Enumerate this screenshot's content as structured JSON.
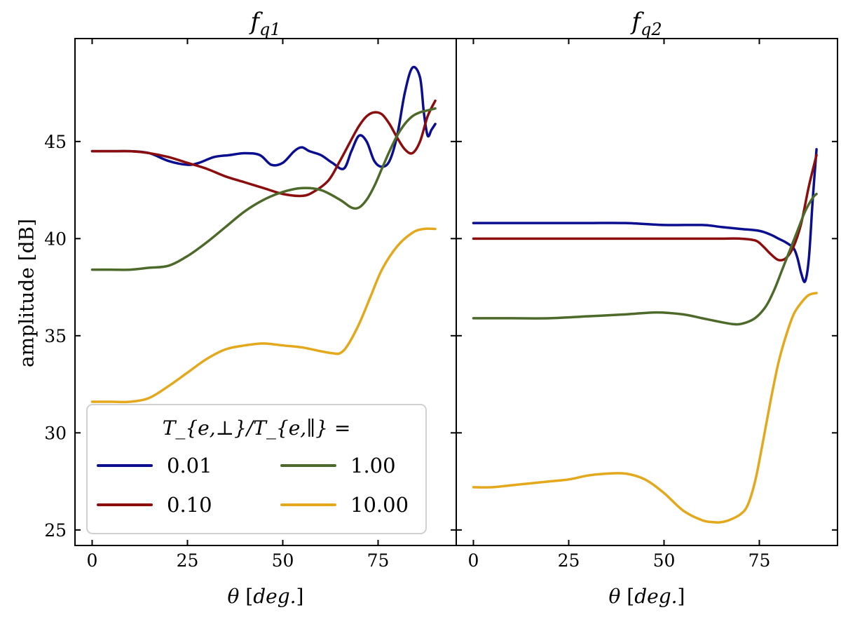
{
  "chart_data": {
    "type": "line",
    "ylabel": "amplitude [dB]",
    "ylim": [
      24.2,
      50.3
    ],
    "yticks": [
      25,
      30,
      35,
      40,
      45
    ],
    "legend": {
      "title": "T_{e,⊥}/T_{e,∥} =",
      "placement": "lower-left",
      "entries": [
        {
          "label": "0.01",
          "color": "#0b0f8f"
        },
        {
          "label": "0.10",
          "color": "#8c0d0d"
        },
        {
          "label": "1.00",
          "color": "#4d6a2a"
        },
        {
          "label": "10.00",
          "color": "#e3a81c"
        }
      ]
    },
    "panels": [
      {
        "title": "fq1",
        "title_main": "f",
        "title_sub": "q1",
        "xlabel": "θ [deg.]",
        "xlim": [
          -4.5,
          95.5
        ],
        "xticks": [
          0,
          25,
          50,
          75
        ],
        "series": [
          {
            "name": "0.01",
            "color": "#0b0f8f",
            "x": [
              0,
              5,
              10,
              15,
              20,
              25,
              28,
              32,
              36,
              40,
              44,
              47,
              50,
              53,
              55,
              57,
              60,
              63,
              66,
              68,
              70,
              72,
              74,
              76,
              78,
              80,
              82,
              84,
              86,
              87,
              88,
              89,
              90
            ],
            "y": [
              44.5,
              44.5,
              44.5,
              44.4,
              44.0,
              43.8,
              43.9,
              44.2,
              44.3,
              44.4,
              44.3,
              43.8,
              43.9,
              44.5,
              44.7,
              44.5,
              44.3,
              43.9,
              43.6,
              44.5,
              45.3,
              45.0,
              44.0,
              43.7,
              44.0,
              45.3,
              47.5,
              48.8,
              48.3,
              46.5,
              45.3,
              45.6,
              45.9
            ]
          },
          {
            "name": "0.10",
            "color": "#8c0d0d",
            "x": [
              0,
              5,
              10,
              15,
              20,
              25,
              30,
              35,
              40,
              45,
              50,
              55,
              58,
              62,
              65,
              68,
              70,
              72,
              74,
              76,
              78,
              80,
              82,
              84,
              86,
              88,
              90
            ],
            "y": [
              44.5,
              44.5,
              44.5,
              44.4,
              44.2,
              43.9,
              43.6,
              43.2,
              42.9,
              42.6,
              42.3,
              42.2,
              42.4,
              43.0,
              44.0,
              45.1,
              45.8,
              46.3,
              46.5,
              46.4,
              45.9,
              45.2,
              44.6,
              44.4,
              45.0,
              46.3,
              47.1
            ]
          },
          {
            "name": "1.00",
            "color": "#4d6a2a",
            "x": [
              0,
              5,
              10,
              15,
              20,
              25,
              30,
              35,
              40,
              45,
              50,
              55,
              60,
              65,
              68,
              70,
              72,
              74,
              76,
              78,
              80,
              82,
              84,
              86,
              88,
              90
            ],
            "y": [
              38.4,
              38.4,
              38.4,
              38.5,
              38.6,
              39.1,
              39.8,
              40.6,
              41.4,
              42.0,
              42.4,
              42.6,
              42.5,
              42.0,
              41.6,
              41.6,
              42.0,
              42.7,
              43.6,
              44.5,
              45.3,
              45.9,
              46.3,
              46.5,
              46.6,
              46.7
            ]
          },
          {
            "name": "10.00",
            "color": "#e3a81c",
            "x": [
              0,
              5,
              10,
              15,
              20,
              25,
              30,
              35,
              40,
              45,
              50,
              55,
              60,
              63,
              65,
              67,
              70,
              73,
              76,
              80,
              84,
              87,
              90
            ],
            "y": [
              31.6,
              31.6,
              31.6,
              31.8,
              32.4,
              33.1,
              33.8,
              34.3,
              34.5,
              34.6,
              34.5,
              34.4,
              34.2,
              34.1,
              34.1,
              34.5,
              35.6,
              37.0,
              38.4,
              39.6,
              40.3,
              40.5,
              40.5
            ]
          }
        ]
      },
      {
        "title": "fq2",
        "title_main": "f",
        "title_sub": "q2",
        "xlabel": "θ [deg.]",
        "xlim": [
          -4.5,
          95.5
        ],
        "xticks": [
          0,
          25,
          50,
          75
        ],
        "series": [
          {
            "name": "0.01",
            "color": "#0b0f8f",
            "x": [
              0,
              10,
              20,
              30,
              40,
              50,
              60,
              65,
              70,
              75,
              78,
              80,
              82,
              84,
              85,
              86,
              87,
              88,
              89,
              90
            ],
            "y": [
              40.8,
              40.8,
              40.8,
              40.8,
              40.8,
              40.7,
              40.7,
              40.6,
              40.5,
              40.4,
              40.2,
              40.0,
              39.8,
              39.5,
              39.0,
              38.2,
              37.8,
              39.0,
              42.0,
              44.6
            ]
          },
          {
            "name": "0.10",
            "color": "#8c0d0d",
            "x": [
              0,
              10,
              20,
              30,
              40,
              50,
              60,
              65,
              70,
              74,
              76,
              78,
              80,
              82,
              84,
              86,
              88,
              90
            ],
            "y": [
              40.0,
              40.0,
              40.0,
              40.0,
              40.0,
              40.0,
              40.0,
              40.0,
              40.0,
              39.9,
              39.6,
              39.2,
              38.9,
              39.0,
              39.6,
              40.8,
              42.7,
              44.3
            ]
          },
          {
            "name": "1.00",
            "color": "#4d6a2a",
            "x": [
              0,
              10,
              20,
              30,
              40,
              48,
              55,
              60,
              65,
              68,
              70,
              73,
              75,
              77,
              79,
              81,
              83,
              85,
              87,
              89,
              90
            ],
            "y": [
              35.9,
              35.9,
              35.9,
              36.0,
              36.1,
              36.2,
              36.1,
              35.9,
              35.7,
              35.6,
              35.6,
              35.8,
              36.1,
              36.6,
              37.4,
              38.4,
              39.4,
              40.4,
              41.4,
              42.1,
              42.3
            ]
          },
          {
            "name": "10.00",
            "color": "#e3a81c",
            "x": [
              0,
              5,
              10,
              15,
              20,
              25,
              30,
              35,
              40,
              45,
              50,
              55,
              60,
              63,
              65,
              67,
              70,
              72,
              74,
              76,
              78,
              80,
              82,
              84,
              86,
              88,
              90
            ],
            "y": [
              27.2,
              27.2,
              27.3,
              27.4,
              27.5,
              27.6,
              27.8,
              27.9,
              27.9,
              27.6,
              26.9,
              26.0,
              25.5,
              25.4,
              25.4,
              25.5,
              25.8,
              26.3,
              27.6,
              29.6,
              31.7,
              33.6,
              35.0,
              36.1,
              36.7,
              37.1,
              37.2
            ]
          }
        ]
      }
    ]
  }
}
